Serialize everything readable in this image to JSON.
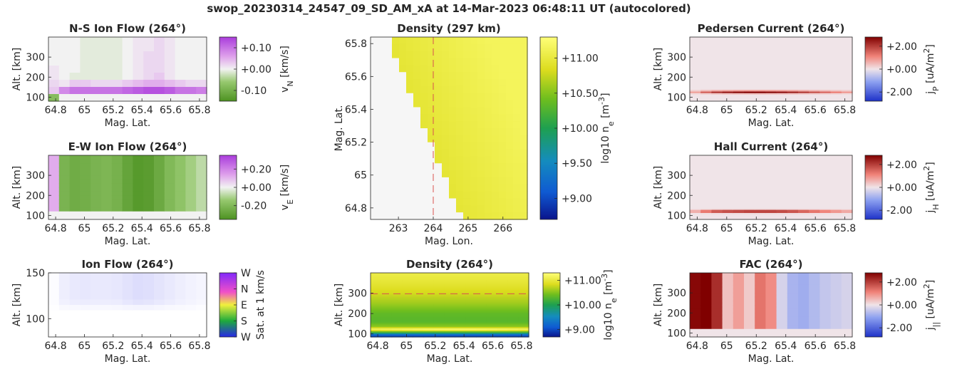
{
  "figure": {
    "title": "swop_20230314_24547_09_SD_AM_xA at 14-Mar-2023 06:48:11 UT (autocolored)"
  },
  "chart_data": [
    {
      "id": "ns_flow",
      "type": "heatmap",
      "title": "N-S Ion Flow (264°)",
      "xlabel": "Mag. Lat.",
      "ylabel": "Alt. [km]",
      "xticks": [
        "64.8",
        "65",
        "65.2",
        "65.4",
        "65.6",
        "65.8"
      ],
      "yticks": [
        "100",
        "200",
        "300"
      ],
      "xlim": [
        64.75,
        65.85
      ],
      "ylim": [
        80,
        400
      ],
      "colorbar": {
        "label": "v_N [km/s]",
        "colormap": "green-white-purple",
        "range": [
          -0.15,
          0.15
        ],
        "ticks": [
          "+0.10",
          "+0.00",
          "-0.10"
        ]
      },
      "values_note": "x: latitude (64.75→65.85), y: altitude (400→80 km)",
      "grid": [
        [
          0,
          0,
          0,
          -0.01,
          -0.01,
          -0.01,
          -0.01,
          0,
          0.01,
          0.01,
          0.02,
          0.01,
          0,
          0,
          0
        ],
        [
          0,
          0,
          0,
          -0.01,
          -0.01,
          -0.01,
          -0.01,
          0,
          0.01,
          0.01,
          0.02,
          0.01,
          0,
          0,
          0
        ],
        [
          0,
          0,
          0,
          -0.01,
          -0.01,
          -0.01,
          -0.01,
          0,
          0.01,
          0.02,
          0.02,
          0.01,
          0,
          0,
          0
        ],
        [
          0,
          0,
          0,
          -0.01,
          -0.01,
          -0.01,
          -0.01,
          0,
          0.01,
          0.02,
          0.02,
          0.01,
          0,
          0,
          0
        ],
        [
          0.01,
          0,
          0,
          -0.01,
          -0.01,
          -0.01,
          -0.01,
          0,
          0.01,
          0.02,
          0.02,
          0.01,
          0,
          0,
          0
        ],
        [
          0.01,
          0,
          -0.01,
          -0.01,
          -0.01,
          -0.01,
          -0.01,
          0,
          0.01,
          0.02,
          0.03,
          0.01,
          0,
          0,
          0
        ],
        [
          0.02,
          0.01,
          0.03,
          0.03,
          0.02,
          0.02,
          0.02,
          0.03,
          0.04,
          0.05,
          0.05,
          0.04,
          0.03,
          0.02,
          0.02
        ],
        [
          0.03,
          0.08,
          0.1,
          0.1,
          0.1,
          0.1,
          0.1,
          0.11,
          0.12,
          0.13,
          0.13,
          0.12,
          0.1,
          0.1,
          0.09
        ],
        [
          -0.08,
          0,
          0,
          0,
          0,
          0,
          0,
          0,
          0,
          0,
          0,
          0,
          0,
          0,
          0
        ]
      ]
    },
    {
      "id": "ew_flow",
      "type": "heatmap",
      "title": "E-W Ion Flow (264°)",
      "xlabel": "Mag. Lat.",
      "ylabel": "Alt. [km]",
      "xticks": [
        "64.8",
        "65",
        "65.2",
        "65.4",
        "65.6",
        "65.8"
      ],
      "yticks": [
        "100",
        "200",
        "300"
      ],
      "xlim": [
        64.75,
        65.85
      ],
      "ylim": [
        80,
        400
      ],
      "colorbar": {
        "label": "v_E [km/s]",
        "colormap": "green-white-purple",
        "range": [
          -0.35,
          0.35
        ],
        "ticks": [
          "+0.20",
          "+0.00",
          "-0.20"
        ]
      },
      "values_note": "x: latitude columns",
      "columns": [
        0.12,
        -0.22,
        -0.25,
        -0.24,
        -0.22,
        -0.21,
        -0.23,
        -0.28,
        -0.32,
        -0.31,
        -0.26,
        -0.2,
        -0.16,
        -0.12,
        -0.08
      ]
    },
    {
      "id": "ion_flow",
      "type": "heatmap",
      "title": "Ion Flow (264°)",
      "xlabel": "Mag. Lat.",
      "ylabel": "Alt. [km]",
      "xticks": [
        "64.8",
        "65",
        "65.2",
        "65.4",
        "65.6",
        "65.8"
      ],
      "yticks": [
        "100",
        "150"
      ],
      "xlim": [
        64.75,
        65.85
      ],
      "ylim": [
        80,
        150
      ],
      "colorbar": {
        "label": "Sat. at 1 km/s",
        "colormap": "direction-wheel",
        "ticks": [
          "W",
          "N",
          "E",
          "S",
          "W"
        ]
      },
      "columns_strength": [
        0.02,
        0.1,
        0.13,
        0.14,
        0.13,
        0.13,
        0.14,
        0.17,
        0.2,
        0.19,
        0.16,
        0.13,
        0.1,
        0.08,
        0.06
      ]
    },
    {
      "id": "density_map",
      "type": "heatmap",
      "title": "Density (297 km)",
      "xlabel": "Mag. Lon.",
      "ylabel": "Mag. Lat.",
      "xticks": [
        "263",
        "264",
        "265",
        "266"
      ],
      "yticks": [
        "64.8",
        "65",
        "65.2",
        "65.4",
        "65.6",
        "65.8"
      ],
      "xlim": [
        262.2,
        266.7
      ],
      "ylim": [
        64.73,
        65.84
      ],
      "marker_longitude": 264,
      "colorbar": {
        "label": "log10 n_e [m^-3]",
        "colormap": "parula",
        "range": [
          8.7,
          11.3
        ],
        "ticks": [
          "+11.00",
          "+10.50",
          "+10.00",
          "+9.50",
          "+9.00"
        ]
      }
    },
    {
      "id": "density_profile",
      "type": "heatmap",
      "title": "Density (264°)",
      "xlabel": "Mag. Lat.",
      "ylabel": "Alt. [km]",
      "xticks": [
        "64.8",
        "65",
        "65.2",
        "65.4",
        "65.6",
        "65.8"
      ],
      "yticks": [
        "100",
        "200",
        "300"
      ],
      "xlim": [
        64.75,
        65.85
      ],
      "ylim": [
        85,
        400
      ],
      "marker_altitude": 297,
      "colorbar": {
        "label": "log10 n_e [m^-3]",
        "colormap": "parula",
        "range": [
          8.7,
          11.3
        ],
        "ticks": [
          "+11.00",
          "+10.00",
          "+9.00"
        ]
      },
      "altitude_profile": [
        {
          "alt": 400,
          "value": 11.05
        },
        {
          "alt": 350,
          "value": 10.95
        },
        {
          "alt": 300,
          "value": 10.8
        },
        {
          "alt": 250,
          "value": 10.6
        },
        {
          "alt": 200,
          "value": 10.35
        },
        {
          "alt": 160,
          "value": 10.3
        },
        {
          "alt": 135,
          "value": 10.55
        },
        {
          "alt": 122,
          "value": 11.2
        },
        {
          "alt": 110,
          "value": 10.4
        },
        {
          "alt": 95,
          "value": 9.2
        },
        {
          "alt": 85,
          "value": 8.9
        }
      ]
    },
    {
      "id": "pedersen",
      "type": "heatmap",
      "title": "Pedersen Current (264°)",
      "xlabel": "Mag. Lat.",
      "ylabel": "Alt. [km]",
      "xticks": [
        "64.8",
        "65",
        "65.2",
        "65.4",
        "65.6",
        "65.8"
      ],
      "yticks": [
        "100",
        "200",
        "300"
      ],
      "xlim": [
        64.75,
        65.85
      ],
      "ylim": [
        80,
        400
      ],
      "colorbar": {
        "label": "j_P [uA/m^2]",
        "colormap": "blue-white-red",
        "range": [
          -2.8,
          2.8
        ],
        "ticks": [
          "+2.00",
          "+0.00",
          "-2.00"
        ]
      },
      "layer_altitude": 125,
      "layer_strength": [
        0.8,
        1.6,
        2.2,
        2.5,
        2.7,
        2.8,
        2.8,
        2.7,
        2.6,
        2.4,
        2.1,
        1.8,
        1.5,
        1.2,
        0.9
      ]
    },
    {
      "id": "hall",
      "type": "heatmap",
      "title": "Hall Current (264°)",
      "xlabel": "Mag. Lat.",
      "ylabel": "Alt. [km]",
      "xticks": [
        "64.8",
        "65",
        "65.2",
        "65.4",
        "65.6",
        "65.8"
      ],
      "yticks": [
        "100",
        "200",
        "300"
      ],
      "xlim": [
        64.75,
        65.85
      ],
      "ylim": [
        80,
        400
      ],
      "colorbar": {
        "label": "j_H [uA/m^2]",
        "colormap": "blue-white-red",
        "range": [
          -2.8,
          2.8
        ],
        "ticks": [
          "+2.00",
          "+0.00",
          "-2.00"
        ]
      },
      "layer_altitude": 120,
      "layer_strength": [
        0.9,
        1.8,
        2.4,
        2.6,
        2.7,
        2.8,
        2.8,
        2.8,
        2.7,
        2.5,
        2.2,
        1.9,
        1.6,
        1.3,
        1.0
      ]
    },
    {
      "id": "fac",
      "type": "heatmap",
      "title": "FAC (264°)",
      "xlabel": "Mag. Lat.",
      "ylabel": "Alt. [km]",
      "xticks": [
        "64.8",
        "65",
        "65.2",
        "65.4",
        "65.6",
        "65.8"
      ],
      "yticks": [
        "100",
        "200",
        "300"
      ],
      "xlim": [
        64.75,
        65.85
      ],
      "ylim": [
        80,
        400
      ],
      "colorbar": {
        "label": "j_|| [uA/m^2]",
        "colormap": "blue-white-red",
        "range": [
          -2.8,
          2.8
        ],
        "ticks": [
          "+2.00",
          "+0.00",
          "-2.00"
        ]
      },
      "columns": [
        2.7,
        2.8,
        2.2,
        0.4,
        0.8,
        0.3,
        1.3,
        1.0,
        -0.3,
        -0.8,
        -0.9,
        -0.7,
        -0.5,
        -0.4,
        -0.3
      ]
    }
  ]
}
